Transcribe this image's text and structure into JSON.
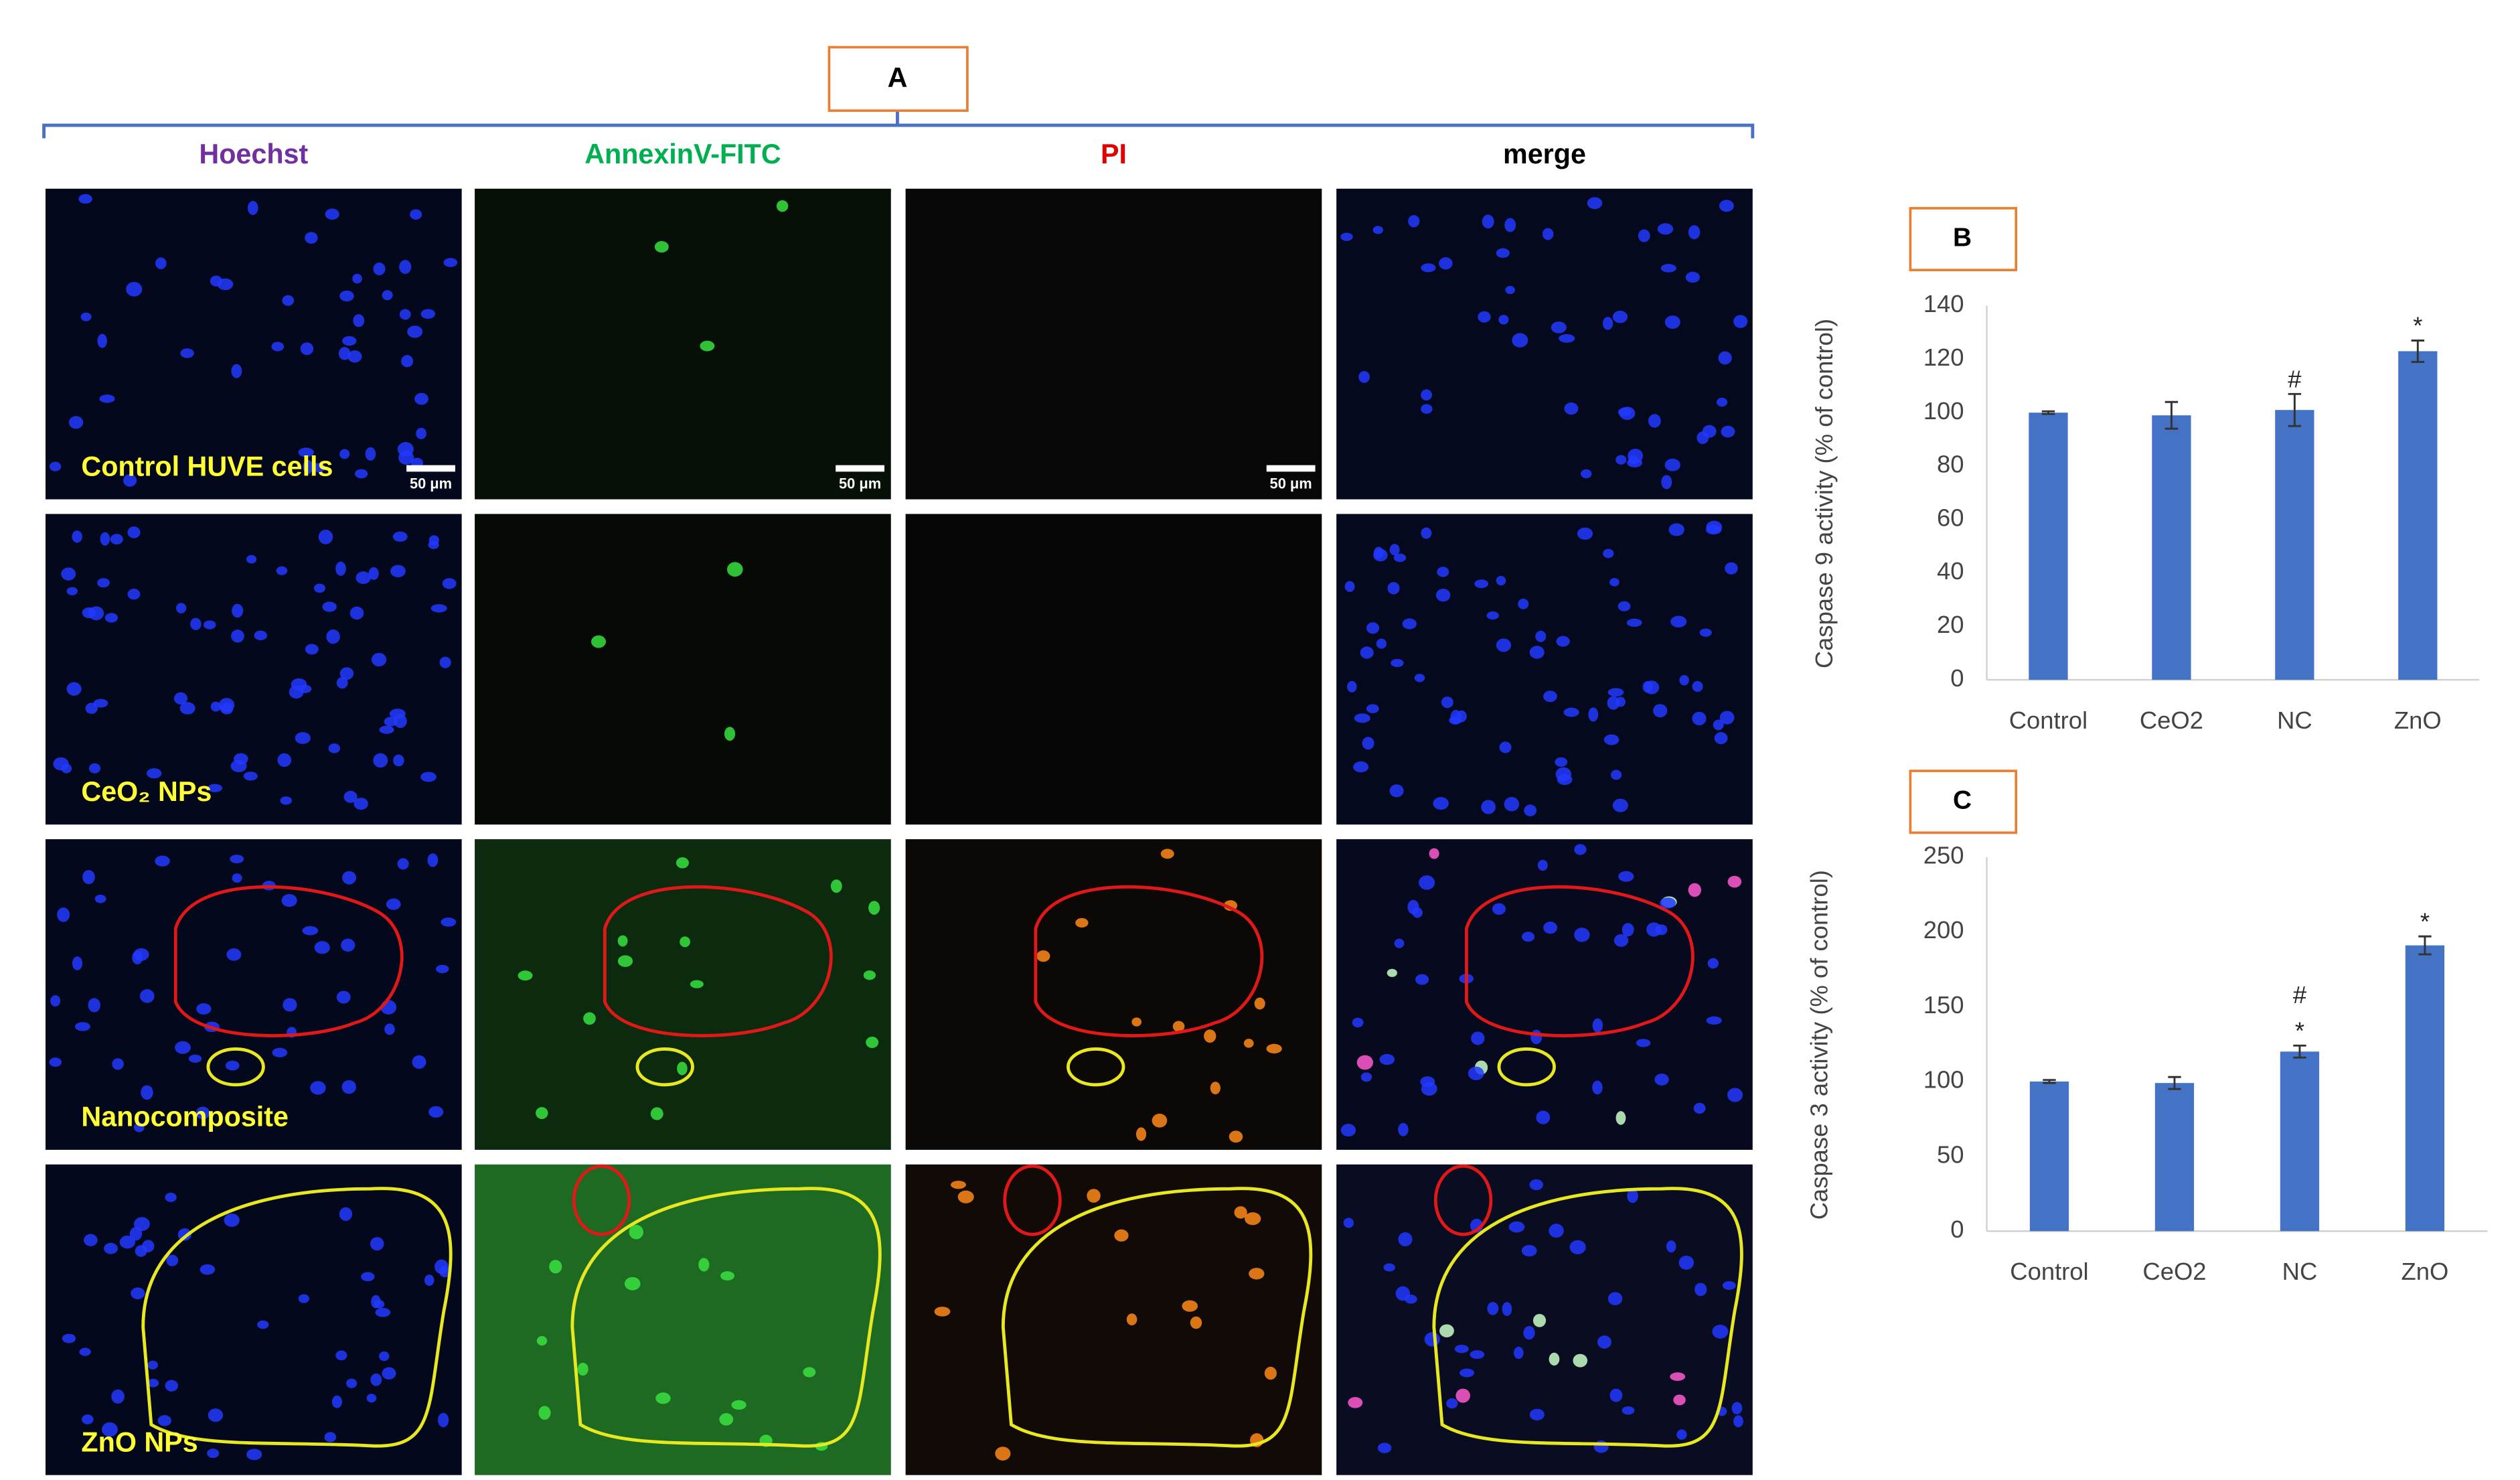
{
  "panel_a": {
    "label": "A",
    "headers": [
      {
        "text": "Hoechst",
        "color": "#7030a0"
      },
      {
        "text": "AnnexinV-FITC",
        "color": "#00b050"
      },
      {
        "text": "PI",
        "color": "#e00000"
      },
      {
        "text": "merge",
        "color": "#000000"
      }
    ],
    "rows": [
      "Control HUVE cells",
      "CeO₂ NPs",
      "Nanocomposite",
      "ZnO NPs"
    ],
    "scale_bar": "50 μm"
  },
  "chart_data": [
    {
      "type": "bar",
      "title": "B",
      "y_label": "Caspase 9 activity (% of control)",
      "categories": [
        "Control",
        "CeO2",
        "NC",
        "ZnO"
      ],
      "values": [
        100,
        99,
        101,
        123
      ],
      "errors": [
        0.5,
        5,
        6,
        4
      ],
      "color": "#4472c4",
      "ylim": [
        0,
        140
      ],
      "yticks": [
        0,
        20,
        40,
        60,
        80,
        100,
        120,
        140
      ],
      "grid": false,
      "annotations": [
        {
          "category": "NC",
          "text": "#"
        },
        {
          "category": "ZnO",
          "text": "*"
        }
      ]
    },
    {
      "type": "bar",
      "title": "C",
      "y_label": "Caspase 3 activity (% of control)",
      "categories": [
        "Control",
        "CeO2",
        "NC",
        "ZnO"
      ],
      "values": [
        100,
        99,
        120,
        191
      ],
      "errors": [
        1,
        4,
        4,
        6
      ],
      "color": "#4472c4",
      "ylim": [
        0,
        250
      ],
      "yticks": [
        0,
        50,
        100,
        150,
        200,
        250
      ],
      "grid": false,
      "annotations": [
        {
          "category": "NC",
          "text": "*"
        },
        {
          "category": "NC",
          "text": "#"
        },
        {
          "category": "ZnO",
          "text": "*"
        }
      ]
    }
  ]
}
